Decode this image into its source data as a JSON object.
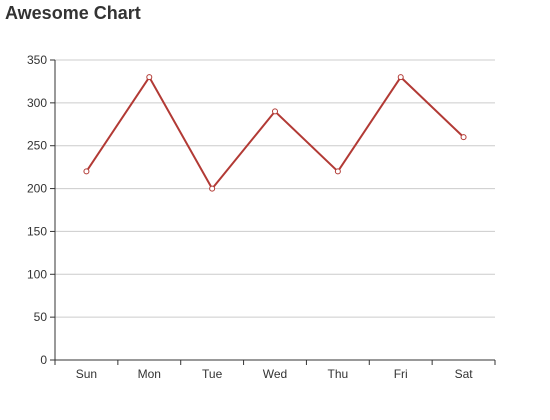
{
  "chart_data": {
    "type": "line",
    "title": "Awesome Chart",
    "categories": [
      "Sun",
      "Mon",
      "Tue",
      "Wed",
      "Thu",
      "Fri",
      "Sat"
    ],
    "series": [
      {
        "values": [
          220,
          330,
          200,
          290,
          220,
          330,
          260
        ]
      }
    ],
    "xlabel": "",
    "ylabel": "",
    "ylim": [
      0,
      350
    ],
    "yticks": [
      0,
      50,
      100,
      150,
      200,
      250,
      300,
      350
    ],
    "grid": true,
    "line_color": "#b23a35",
    "grid_color": "#cccccc",
    "axis_color": "#333333"
  }
}
